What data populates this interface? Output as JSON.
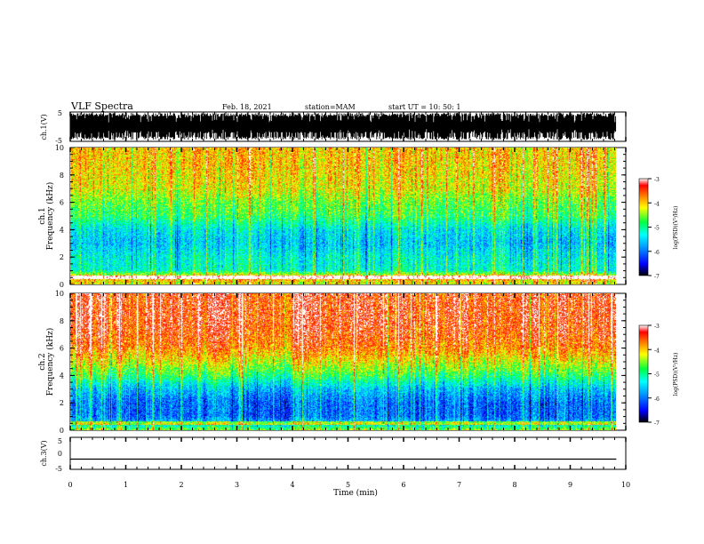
{
  "header": {
    "title": "VLF Spectra",
    "date": "Feb. 18, 2021",
    "station": "station=MAM",
    "start": "start UT =  10: 50: 1"
  },
  "chart_data": [
    {
      "type": "line",
      "panel": "ch1-waveform",
      "ylabel": "ch.1(V)",
      "ylim": [
        -5,
        5
      ],
      "yticks": [
        "5",
        "-5"
      ],
      "description_values": "dense broadband waveform, amplitude mostly filling -5 to 5 V"
    },
    {
      "type": "heatmap",
      "panel": "ch1-spectrogram",
      "ylabel": "ch.1\nFrequency (kHz)",
      "ylabel_line1": "ch.1",
      "ylabel_line2": "Frequency (kHz)",
      "ylim": [
        0,
        10
      ],
      "yticks": [
        "0",
        "2",
        "4",
        "6",
        "8",
        "10"
      ],
      "colorbar": {
        "label": "log(PSD)(V²/Hz)",
        "range": [
          -7,
          -3
        ],
        "ticks": [
          "-3",
          "-4",
          "-5",
          "-6",
          "-7"
        ]
      },
      "profile_freq_khz": [
        0,
        0.5,
        1,
        2,
        3,
        4,
        5,
        6,
        7,
        8,
        9,
        10
      ],
      "profile_log_psd": [
        -4.2,
        -3.8,
        -5.2,
        -5.3,
        -5.6,
        -5.4,
        -4.8,
        -4.6,
        -4.2,
        -4.1,
        -4.0,
        -4.0
      ]
    },
    {
      "type": "heatmap",
      "panel": "ch2-spectrogram",
      "ylabel": "ch.2\nFrequency (kHz)",
      "ylabel_line1": "ch.2",
      "ylabel_line2": "Frequency (kHz)",
      "ylim": [
        0,
        10
      ],
      "yticks": [
        "0",
        "2",
        "4",
        "6",
        "8",
        "10"
      ],
      "colorbar": {
        "label": "log(PSD)(V²/Hz)",
        "range": [
          -7,
          -3
        ],
        "ticks": [
          "-3",
          "-4",
          "-5",
          "-6",
          "-7"
        ]
      },
      "profile_freq_khz": [
        0,
        0.5,
        1,
        2,
        3,
        4,
        5,
        6,
        7,
        8,
        9,
        10
      ],
      "profile_log_psd": [
        -4.5,
        -5.6,
        -6.0,
        -6.0,
        -5.6,
        -4.8,
        -4.2,
        -3.7,
        -3.5,
        -3.4,
        -3.4,
        -3.4
      ]
    },
    {
      "type": "line",
      "panel": "ch3-waveform",
      "ylabel": "ch.3(V)",
      "ylim": [
        -5,
        5
      ],
      "yticks": [
        "5",
        "0",
        "-5"
      ],
      "x": [
        0,
        9.83
      ],
      "y": [
        -1.8,
        -1.8
      ]
    }
  ],
  "xaxis": {
    "label": "Time (min)",
    "xlim": [
      0,
      10
    ],
    "ticks": [
      "0",
      "1",
      "2",
      "3",
      "4",
      "5",
      "6",
      "7",
      "8",
      "9",
      "10"
    ],
    "data_end_min": 9.83
  },
  "colors": {
    "colormap": [
      "#000080",
      "#0000ff",
      "#00a0ff",
      "#00ffff",
      "#00ff60",
      "#a0ff00",
      "#ffff00",
      "#ff8000",
      "#ff0000",
      "#ffffff"
    ],
    "waveform": "#000000"
  }
}
